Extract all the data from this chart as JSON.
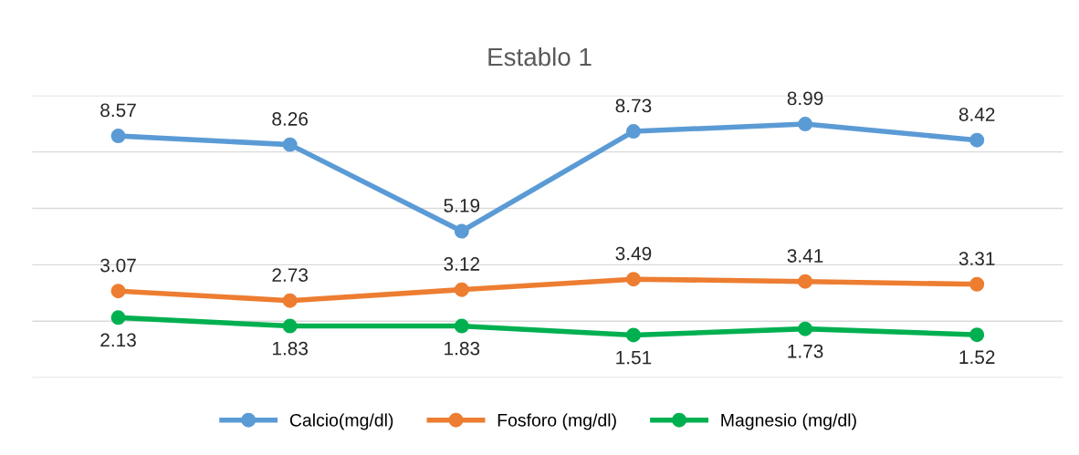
{
  "chart_data": {
    "type": "line",
    "title": "Establo 1",
    "categories": [
      null,
      null,
      null,
      null,
      null,
      null
    ],
    "series": [
      {
        "name": "Calcio(mg/dl)",
        "color": "#5b9bd5",
        "values": [
          8.57,
          8.26,
          5.19,
          8.73,
          8.99,
          8.42
        ]
      },
      {
        "name": "Fosforo (mg/dl)",
        "color": "#ed7d31",
        "values": [
          3.07,
          2.73,
          3.12,
          3.49,
          3.41,
          3.31
        ]
      },
      {
        "name": "Magnesio (mg/dl)",
        "color": "#00b050",
        "values": [
          2.13,
          1.83,
          1.83,
          1.51,
          1.73,
          1.52
        ]
      }
    ],
    "ylim": [
      0,
      10
    ],
    "yticks": [
      {
        "value": 0,
        "label": null
      },
      {
        "value": 2,
        "label": null
      },
      {
        "value": 4,
        "label": null
      },
      {
        "value": 6,
        "label": null
      },
      {
        "value": 8,
        "label": null
      },
      {
        "value": 10,
        "label": null
      }
    ],
    "grid": "y",
    "legend": "bottom",
    "marker": "circle",
    "line_style": "solid",
    "data_labels": true
  }
}
